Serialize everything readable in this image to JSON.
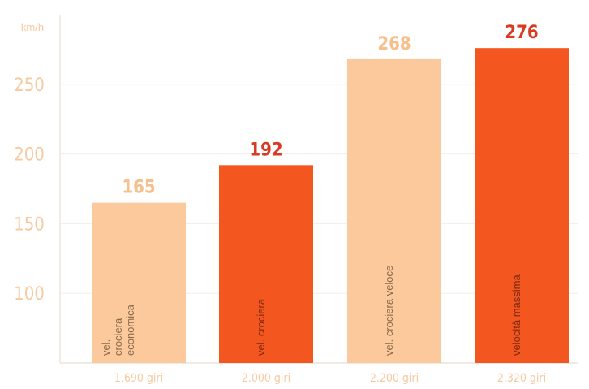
{
  "chart_data": {
    "type": "bar",
    "ylabel": "km/h",
    "yticks": [
      100,
      150,
      200,
      250
    ],
    "ylim": [
      50,
      300
    ],
    "grid": true,
    "categories": [
      "1.690 giri",
      "2.000 giri",
      "2.200 giri",
      "2.320 giri"
    ],
    "bar_labels": [
      "vel. crociera economica",
      "vel. crociera",
      "vel. crociera veloce",
      "velocità massima"
    ],
    "values": [
      165,
      192,
      268,
      276
    ],
    "colors": [
      "#fbc99c",
      "#f4561f",
      "#fbc99c",
      "#f4561f"
    ],
    "value_label_colors": [
      "#f6bf8c",
      "#d83a24",
      "#f6bf8c",
      "#d83a24"
    ]
  }
}
